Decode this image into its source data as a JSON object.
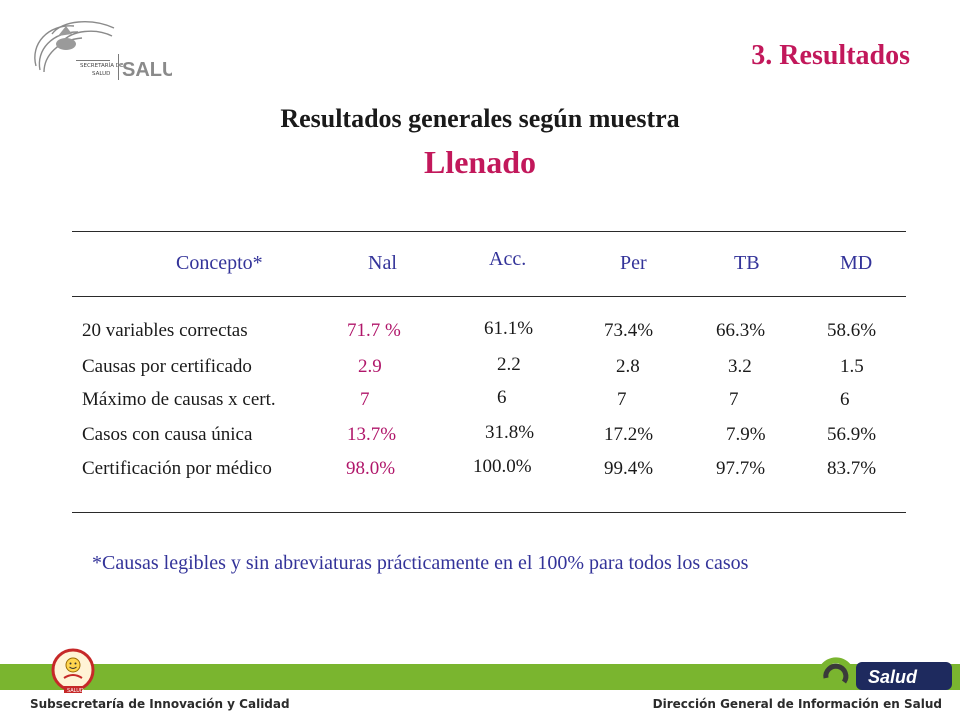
{
  "header": {
    "logo_text_line1": "SECRETARÍA DE",
    "logo_text_line2": "SALUD",
    "logo_brand": "SALUD",
    "section_title": "3. Resultados",
    "title": "Resultados generales según muestra",
    "subtitle": "Llenado"
  },
  "table": {
    "columns": [
      "Concepto*",
      "Nal",
      "Acc.",
      "Per",
      "TB",
      "MD"
    ],
    "rows": [
      {
        "concept": "20 variables correctas",
        "nal": "71.7 %",
        "acc": "61.1%",
        "per": "73.4%",
        "tb": "66.3%",
        "md": "58.6%"
      },
      {
        "concept": "Causas por certificado",
        "nal": "2.9",
        "acc": "2.2",
        "per": "2.8",
        "tb": "3.2",
        "md": "1.5"
      },
      {
        "concept": "Máximo de causas x cert.",
        "nal": "7",
        "acc": "6",
        "per": "7",
        "tb": "7",
        "md": "6"
      },
      {
        "concept": "Casos con causa única",
        "nal": "13.7%",
        "acc": "31.8%",
        "per": "17.2%",
        "tb": "7.9%",
        "md": "56.9%"
      },
      {
        "concept": "Certificación por médico",
        "nal": "98.0%",
        "acc": "100.0%",
        "per": "99.4%",
        "tb": "97.7%",
        "md": "83.7%"
      }
    ]
  },
  "footnote": "*Causas legibles y sin abreviaturas prácticamente en el 100% para todos los casos",
  "footer": {
    "left_text": "Subsecretaría de Innovación y Calidad",
    "right_text": "Dirección General de Información en Salud",
    "right_logo_text": "Salud",
    "left_logo_text": "SALUD",
    "band_color": "#7ab52f"
  },
  "colors": {
    "accent_pink": "#c2185b",
    "header_blue": "#333399"
  }
}
